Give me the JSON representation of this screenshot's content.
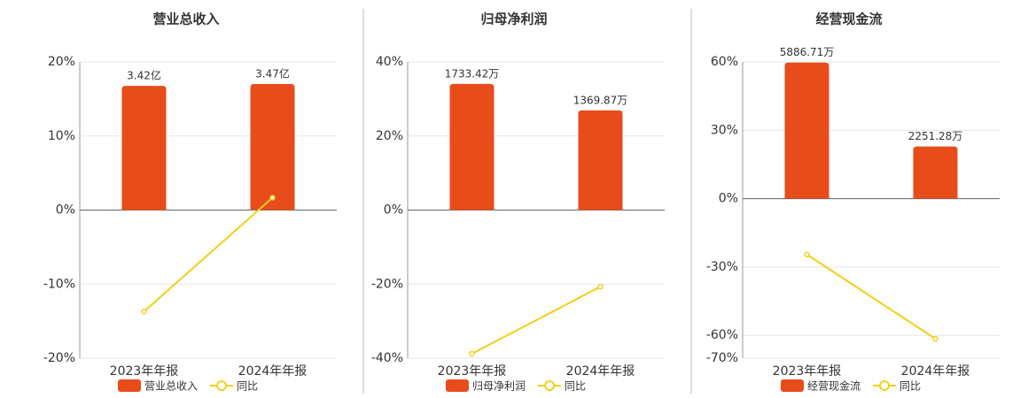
{
  "chart_data": [
    {
      "type": "combo",
      "title": "营业总收入",
      "categories": [
        "2023年年报",
        "2024年年报"
      ],
      "ylim": [
        -20,
        20
      ],
      "yticks": [
        {
          "value": 20,
          "label": "20%"
        },
        {
          "value": 10,
          "label": "10%"
        },
        {
          "value": 0,
          "label": "0%"
        },
        {
          "value": -10,
          "label": "-10%"
        },
        {
          "value": -20,
          "label": "-20%"
        }
      ],
      "y2lim": [
        -4.08,
        4.08
      ],
      "series": [
        {
          "name": "营业总收入",
          "type": "bar",
          "axis": "y2",
          "color": "#e84c1a",
          "values": [
            3.42,
            3.47
          ],
          "value_labels": [
            "3.42亿",
            "3.47亿"
          ]
        },
        {
          "name": "同比",
          "type": "line",
          "color": "#f2cf1b",
          "values": [
            -13.7,
            1.67
          ]
        }
      ]
    },
    {
      "type": "combo",
      "title": "归母净利润",
      "categories": [
        "2023年年报",
        "2024年年报"
      ],
      "ylim": [
        -40,
        40
      ],
      "yticks": [
        {
          "value": 40,
          "label": "40%"
        },
        {
          "value": 20,
          "label": "20%"
        },
        {
          "value": 0,
          "label": "0%"
        },
        {
          "value": -20,
          "label": "-20%"
        },
        {
          "value": -40,
          "label": "-40%"
        }
      ],
      "y2lim": [
        -2036,
        2036
      ],
      "series": [
        {
          "name": "归母净利润",
          "type": "bar",
          "axis": "y2",
          "color": "#e84c1a",
          "values": [
            1733.42,
            1369.87
          ],
          "value_labels": [
            "1733.42万",
            "1369.87万"
          ]
        },
        {
          "name": "同比",
          "type": "line",
          "color": "#f2cf1b",
          "values": [
            -38.8,
            -20.7
          ]
        }
      ]
    },
    {
      "type": "combo",
      "title": "经营现金流",
      "categories": [
        "2023年年报",
        "2024年年报"
      ],
      "ylim": [
        -70,
        60
      ],
      "yticks": [
        {
          "value": 60,
          "label": "60%"
        },
        {
          "value": 30,
          "label": "30%"
        },
        {
          "value": 0,
          "label": "0%"
        },
        {
          "value": -30,
          "label": "-30%"
        },
        {
          "value": -60,
          "label": "-60%"
        },
        {
          "value": -70,
          "label": "-70%"
        }
      ],
      "y2lim": [
        -6912,
        5914
      ],
      "series": [
        {
          "name": "经营现金流",
          "type": "bar",
          "axis": "y2",
          "color": "#e84c1a",
          "values": [
            5886.71,
            2251.28
          ],
          "value_labels": [
            "5886.71万",
            "2251.28万"
          ]
        },
        {
          "name": "同比",
          "type": "line",
          "color": "#f2cf1b",
          "values": [
            -24.5,
            -61.5
          ]
        }
      ]
    }
  ]
}
